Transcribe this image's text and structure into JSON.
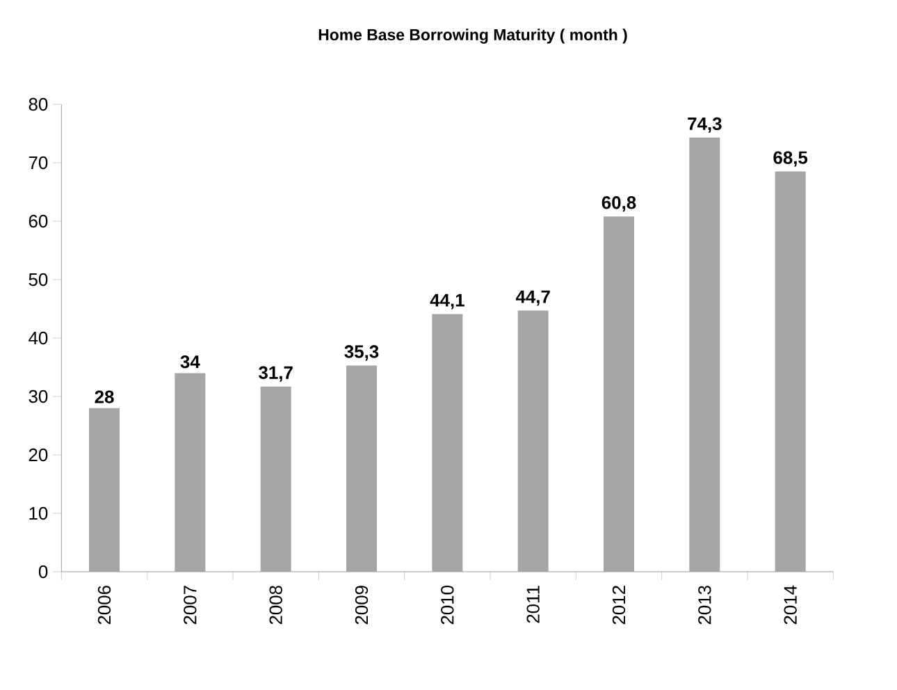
{
  "chart_data": {
    "type": "bar",
    "title": "Home Base Borrowing Maturity ( month )",
    "categories": [
      "2006",
      "2007",
      "2008",
      "2009",
      "2010",
      "2011",
      "2012",
      "2013",
      "2014"
    ],
    "values": [
      28,
      34,
      31.7,
      35.3,
      44.1,
      44.7,
      60.8,
      74.3,
      68.5
    ],
    "value_labels": [
      "28",
      "34",
      "31,7",
      "35,3",
      "44,1",
      "44,7",
      "60,8",
      "74,3",
      "68,5"
    ],
    "color": "#a5a5a5",
    "ylim": [
      0,
      80
    ],
    "yticks": [
      0,
      10,
      20,
      30,
      40,
      50,
      60,
      70,
      80
    ]
  }
}
